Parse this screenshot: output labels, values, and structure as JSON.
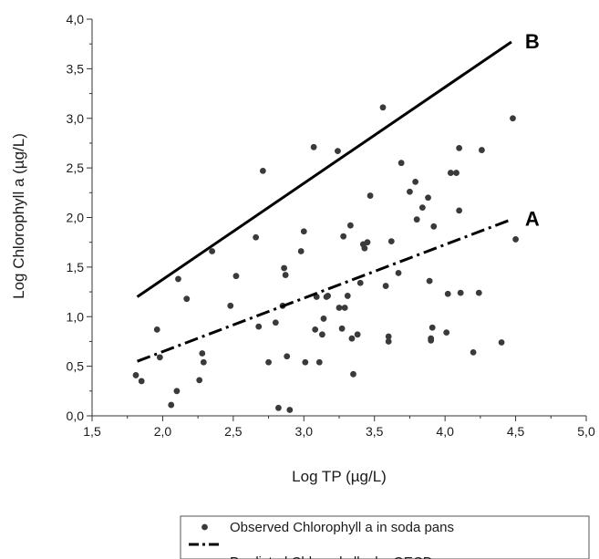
{
  "chart_data": {
    "type": "scatter",
    "xlabel": "Log TP (µg/L)",
    "ylabel": "Log Chlorophyll a (µg/L)",
    "xlim": [
      1.5,
      5.0
    ],
    "ylim": [
      0.0,
      4.0
    ],
    "x_ticks": [
      "1,5",
      "2,0",
      "2,5",
      "3,0",
      "3,5",
      "4,0",
      "4,5",
      "5,0"
    ],
    "y_ticks": [
      "0,0",
      "0,5",
      "1,0",
      "1,5",
      "2,0",
      "2,5",
      "3,0",
      "3,5",
      "4,0"
    ],
    "grid": false,
    "legend_position": "bottom",
    "legend": [
      {
        "label": "Observed Chlorophyll a in soda pans",
        "style": "dot"
      },
      {
        "label": "",
        "style": "dash-dot"
      },
      {
        "label": "Predicted Chlorophyll a by OECD",
        "style": "solid"
      }
    ],
    "series": [
      {
        "name": "Observed Chlorophyll a in soda pans",
        "style": "dot",
        "color": "#3a3a3a",
        "points": [
          [
            1.81,
            0.41
          ],
          [
            1.85,
            0.35
          ],
          [
            1.96,
            0.87
          ],
          [
            1.98,
            0.59
          ],
          [
            2.06,
            0.11
          ],
          [
            2.1,
            0.25
          ],
          [
            2.11,
            1.38
          ],
          [
            2.17,
            1.18
          ],
          [
            2.26,
            0.36
          ],
          [
            2.28,
            0.63
          ],
          [
            2.29,
            0.54
          ],
          [
            2.35,
            1.66
          ],
          [
            2.48,
            1.11
          ],
          [
            2.52,
            1.41
          ],
          [
            2.66,
            1.8
          ],
          [
            2.68,
            0.9
          ],
          [
            2.71,
            2.47
          ],
          [
            2.75,
            0.54
          ],
          [
            2.8,
            0.94
          ],
          [
            2.82,
            0.08
          ],
          [
            2.85,
            1.11
          ],
          [
            2.86,
            1.49
          ],
          [
            2.87,
            1.42
          ],
          [
            2.88,
            0.6
          ],
          [
            2.9,
            0.06
          ],
          [
            2.98,
            1.66
          ],
          [
            3.0,
            1.86
          ],
          [
            3.01,
            0.54
          ],
          [
            3.07,
            2.71
          ],
          [
            3.08,
            0.87
          ],
          [
            3.09,
            1.2
          ],
          [
            3.11,
            0.54
          ],
          [
            3.13,
            0.82
          ],
          [
            3.14,
            0.98
          ],
          [
            3.16,
            1.2
          ],
          [
            3.17,
            1.21
          ],
          [
            3.24,
            2.67
          ],
          [
            3.25,
            1.09
          ],
          [
            3.27,
            0.88
          ],
          [
            3.28,
            1.81
          ],
          [
            3.29,
            1.09
          ],
          [
            3.31,
            1.21
          ],
          [
            3.33,
            1.92
          ],
          [
            3.34,
            0.78
          ],
          [
            3.35,
            0.42
          ],
          [
            3.38,
            0.82
          ],
          [
            3.4,
            1.34
          ],
          [
            3.42,
            1.73
          ],
          [
            3.43,
            1.69
          ],
          [
            3.45,
            1.75
          ],
          [
            3.47,
            2.22
          ],
          [
            3.56,
            3.11
          ],
          [
            3.58,
            1.31
          ],
          [
            3.6,
            0.8
          ],
          [
            3.6,
            0.75
          ],
          [
            3.62,
            1.76
          ],
          [
            3.67,
            1.44
          ],
          [
            3.69,
            2.55
          ],
          [
            3.75,
            2.26
          ],
          [
            3.79,
            2.36
          ],
          [
            3.8,
            1.98
          ],
          [
            3.84,
            2.1
          ],
          [
            3.88,
            2.2
          ],
          [
            3.89,
            1.36
          ],
          [
            3.9,
            0.78
          ],
          [
            3.9,
            0.76
          ],
          [
            3.91,
            0.89
          ],
          [
            3.92,
            1.91
          ],
          [
            4.01,
            0.84
          ],
          [
            4.02,
            1.23
          ],
          [
            4.04,
            2.45
          ],
          [
            4.08,
            2.45
          ],
          [
            4.1,
            2.7
          ],
          [
            4.1,
            2.07
          ],
          [
            4.11,
            1.24
          ],
          [
            4.2,
            0.64
          ],
          [
            4.24,
            1.24
          ],
          [
            4.26,
            2.68
          ],
          [
            4.4,
            0.74
          ],
          [
            4.48,
            3.0
          ],
          [
            4.5,
            1.78
          ]
        ]
      },
      {
        "name": "A",
        "style": "dash-dot",
        "color": "#000000",
        "points": [
          [
            1.82,
            0.55
          ],
          [
            4.47,
            1.98
          ]
        ]
      },
      {
        "name": "B",
        "style": "solid",
        "color": "#000000",
        "points": [
          [
            1.82,
            1.2
          ],
          [
            4.47,
            3.77
          ]
        ]
      }
    ]
  }
}
